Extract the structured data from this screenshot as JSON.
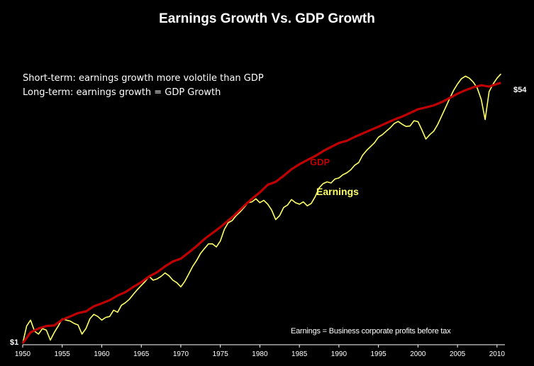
{
  "chart_data": {
    "type": "line",
    "title": "Earnings Growth Vs. GDP Growth",
    "annotations": [
      "Short-term: earnings growth more volotile than GDP",
      "Long-term: earnings growth = GDP Growth"
    ],
    "footnote": "Earnings = Business corporate profits before tax",
    "start_label": "$1",
    "end_label": "$54",
    "xlabel": "",
    "ylabel": "",
    "xlim": [
      1950,
      2011
    ],
    "ylim": [
      1,
      65
    ],
    "y_scale": "log",
    "grid": false,
    "x_ticks": [
      1950,
      1955,
      1960,
      1965,
      1970,
      1975,
      1980,
      1985,
      1990,
      1995,
      2000,
      2005,
      2010
    ],
    "series": [
      {
        "name": "GDP",
        "color": "#c00000",
        "x": [
          1950,
          1951,
          1952,
          1953,
          1954,
          1955,
          1956,
          1957,
          1958,
          1959,
          1960,
          1961,
          1962,
          1963,
          1964,
          1965,
          1966,
          1967,
          1968,
          1969,
          1970,
          1971,
          1972,
          1973,
          1974,
          1975,
          1976,
          1977,
          1978,
          1979,
          1980,
          1981,
          1982,
          1983,
          1984,
          1985,
          1986,
          1987,
          1988,
          1989,
          1990,
          1991,
          1992,
          1993,
          1994,
          1995,
          1996,
          1997,
          1998,
          1999,
          2000,
          2001,
          2002,
          2003,
          2004,
          2005,
          2006,
          2007,
          2008,
          2009,
          2010,
          2010.5
        ],
        "values": [
          1.0,
          1.18,
          1.25,
          1.3,
          1.31,
          1.43,
          1.5,
          1.58,
          1.62,
          1.75,
          1.83,
          1.92,
          2.06,
          2.17,
          2.35,
          2.52,
          2.75,
          2.93,
          3.2,
          3.45,
          3.6,
          3.95,
          4.35,
          4.85,
          5.3,
          5.8,
          6.4,
          7.1,
          8.0,
          8.9,
          9.8,
          11.0,
          11.5,
          12.6,
          13.9,
          15.0,
          16.0,
          17.0,
          18.3,
          19.5,
          20.7,
          21.4,
          22.7,
          23.9,
          25.2,
          26.5,
          28.0,
          29.5,
          30.9,
          32.6,
          34.5,
          35.5,
          36.6,
          38.4,
          40.9,
          43.6,
          46.0,
          48.1,
          49.6,
          48.6,
          50.6,
          51.5
        ]
      },
      {
        "name": "Earnings",
        "color": "#ffff66",
        "x": [
          1950,
          1950.5,
          1951,
          1951.5,
          1952,
          1952.5,
          1953,
          1953.5,
          1954,
          1954.5,
          1955,
          1955.5,
          1956,
          1956.5,
          1957,
          1957.5,
          1958,
          1958.5,
          1959,
          1959.5,
          1960,
          1960.5,
          1961,
          1961.5,
          1962,
          1962.5,
          1963,
          1963.5,
          1964,
          1964.5,
          1965,
          1965.5,
          1966,
          1966.5,
          1967,
          1967.5,
          1968,
          1968.5,
          1969,
          1969.5,
          1970,
          1970.5,
          1971,
          1971.5,
          1972,
          1972.5,
          1973,
          1973.5,
          1974,
          1974.5,
          1975,
          1975.5,
          1976,
          1976.5,
          1977,
          1977.5,
          1978,
          1978.5,
          1979,
          1979.5,
          1980,
          1980.5,
          1981,
          1981.5,
          1982,
          1982.5,
          1983,
          1983.5,
          1984,
          1984.5,
          1985,
          1985.5,
          1986,
          1986.5,
          1987,
          1987.5,
          1988,
          1988.5,
          1989,
          1989.5,
          1990,
          1990.5,
          1991,
          1991.5,
          1992,
          1992.5,
          1993,
          1993.5,
          1994,
          1994.5,
          1995,
          1995.5,
          1996,
          1996.5,
          1997,
          1997.5,
          1998,
          1998.5,
          1999,
          1999.5,
          2000,
          2000.5,
          2001,
          2001.5,
          2002,
          2002.5,
          2003,
          2003.5,
          2004,
          2004.5,
          2005,
          2005.5,
          2006,
          2006.5,
          2007,
          2007.5,
          2008,
          2008.5,
          2009,
          2009.5,
          2010,
          2010.5
        ],
        "values": [
          1.0,
          1.3,
          1.42,
          1.2,
          1.15,
          1.25,
          1.22,
          1.05,
          1.18,
          1.3,
          1.45,
          1.42,
          1.4,
          1.35,
          1.32,
          1.15,
          1.25,
          1.45,
          1.55,
          1.5,
          1.42,
          1.48,
          1.5,
          1.65,
          1.6,
          1.78,
          1.85,
          1.95,
          2.1,
          2.25,
          2.4,
          2.55,
          2.75,
          2.6,
          2.65,
          2.75,
          2.9,
          2.78,
          2.6,
          2.5,
          2.35,
          2.55,
          2.85,
          3.2,
          3.5,
          3.9,
          4.2,
          4.5,
          4.5,
          4.3,
          4.7,
          5.6,
          6.2,
          6.4,
          6.9,
          7.3,
          7.8,
          8.4,
          8.5,
          8.9,
          8.4,
          8.7,
          8.2,
          7.5,
          6.5,
          6.9,
          7.8,
          8.1,
          8.8,
          8.4,
          8.2,
          8.5,
          8.0,
          8.3,
          9.2,
          10.5,
          11.2,
          11.5,
          11.3,
          12.0,
          12.2,
          12.8,
          13.2,
          13.8,
          14.8,
          15.4,
          17.2,
          18.5,
          19.6,
          20.8,
          22.6,
          23.5,
          24.8,
          26.1,
          27.8,
          28.7,
          27.5,
          26.6,
          26.8,
          29.0,
          28.6,
          25.2,
          22.0,
          23.5,
          24.8,
          27.4,
          31.2,
          35.5,
          40.5,
          45.8,
          50.5,
          54.8,
          56.9,
          55.2,
          52.0,
          47.5,
          40.0,
          29.5,
          45.0,
          50.5,
          55.2,
          58.9
        ]
      }
    ],
    "series_labels": [
      "GDP",
      "Earnings"
    ]
  }
}
